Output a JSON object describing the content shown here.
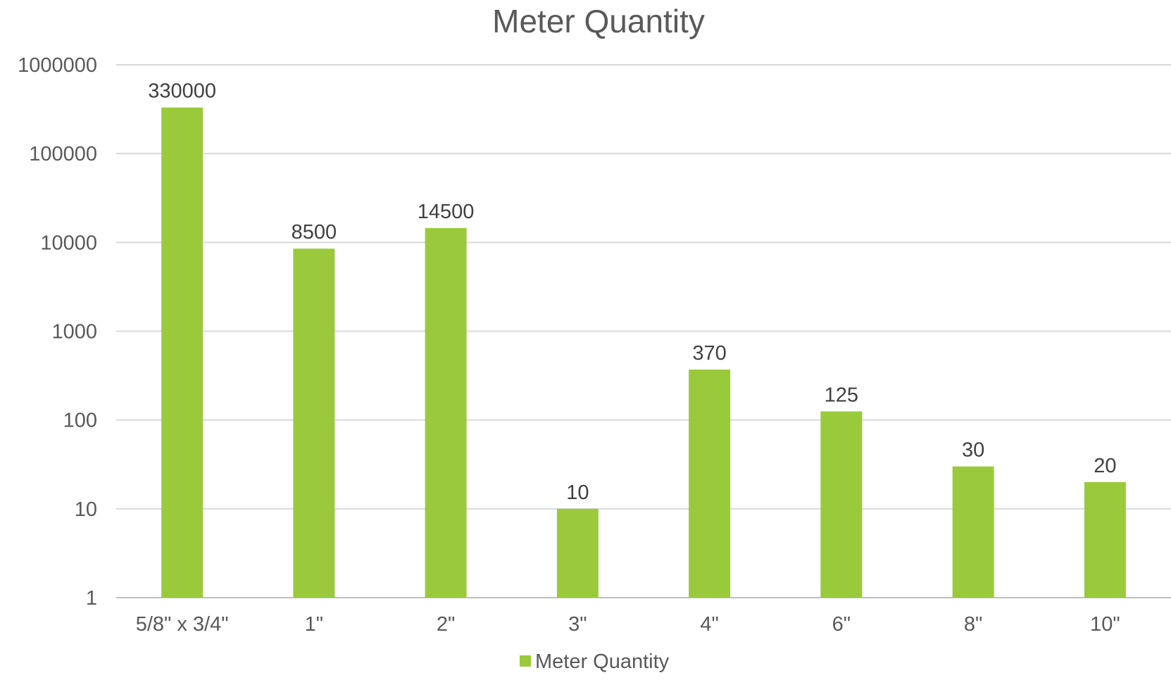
{
  "chart_data": {
    "type": "bar",
    "title": "Meter Quantity",
    "xlabel": "",
    "ylabel": "",
    "y_scale": "log",
    "ylim": [
      1,
      1000000
    ],
    "y_ticks": [
      "1",
      "10",
      "100",
      "1000",
      "10000",
      "100000",
      "1000000"
    ],
    "categories": [
      "5/8\" x 3/4\"",
      "1\"",
      "2\"",
      "3\"",
      "4\"",
      "6\"",
      "8\"",
      "10\""
    ],
    "series": [
      {
        "name": "Meter Quantity",
        "values": [
          330000,
          8500,
          14500,
          10,
          370,
          125,
          30,
          20
        ],
        "labels": [
          "330000",
          "8500",
          "14500",
          "10",
          "370",
          "125",
          "30",
          "20"
        ],
        "color": "#9ACA3C"
      }
    ],
    "grid": true,
    "legend": "bottom"
  }
}
